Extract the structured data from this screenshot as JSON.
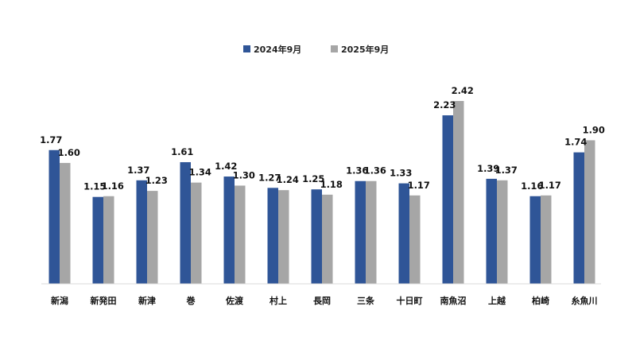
{
  "chart_data": {
    "type": "bar",
    "categories": [
      "新潟",
      "新発田",
      "新津",
      "巻",
      "佐渡",
      "村上",
      "長岡",
      "三条",
      "十日町",
      "南魚沼",
      "上越",
      "柏崎",
      "糸魚川"
    ],
    "series": [
      {
        "name": "2024年9月",
        "color": "#2f5597",
        "values": [
          1.77,
          1.15,
          1.37,
          1.61,
          1.42,
          1.27,
          1.25,
          1.36,
          1.33,
          2.23,
          1.39,
          1.16,
          1.74
        ],
        "labels": [
          "1.77",
          "1.15",
          "1.37",
          "1.61",
          "1.42",
          "1.27",
          "1.25",
          "1.36",
          "1.33",
          "2.23",
          "1.39",
          "1.16",
          "1.74"
        ]
      },
      {
        "name": "2025年9月",
        "color": "#a6a6a6",
        "values": [
          1.6,
          1.16,
          1.23,
          1.34,
          1.3,
          1.24,
          1.18,
          1.36,
          1.17,
          2.42,
          1.37,
          1.17,
          1.9
        ],
        "labels": [
          "1.60",
          "1.16",
          "1.23",
          "1.34",
          "1.30",
          "1.24",
          "1.18",
          "1.36",
          "1.17",
          "2.42",
          "1.37",
          "1.17",
          "1.90"
        ]
      }
    ],
    "legend_position": "top-center",
    "grid": false,
    "ylim": [
      0,
      2.42
    ],
    "title": "",
    "xlabel": "",
    "ylabel": ""
  }
}
